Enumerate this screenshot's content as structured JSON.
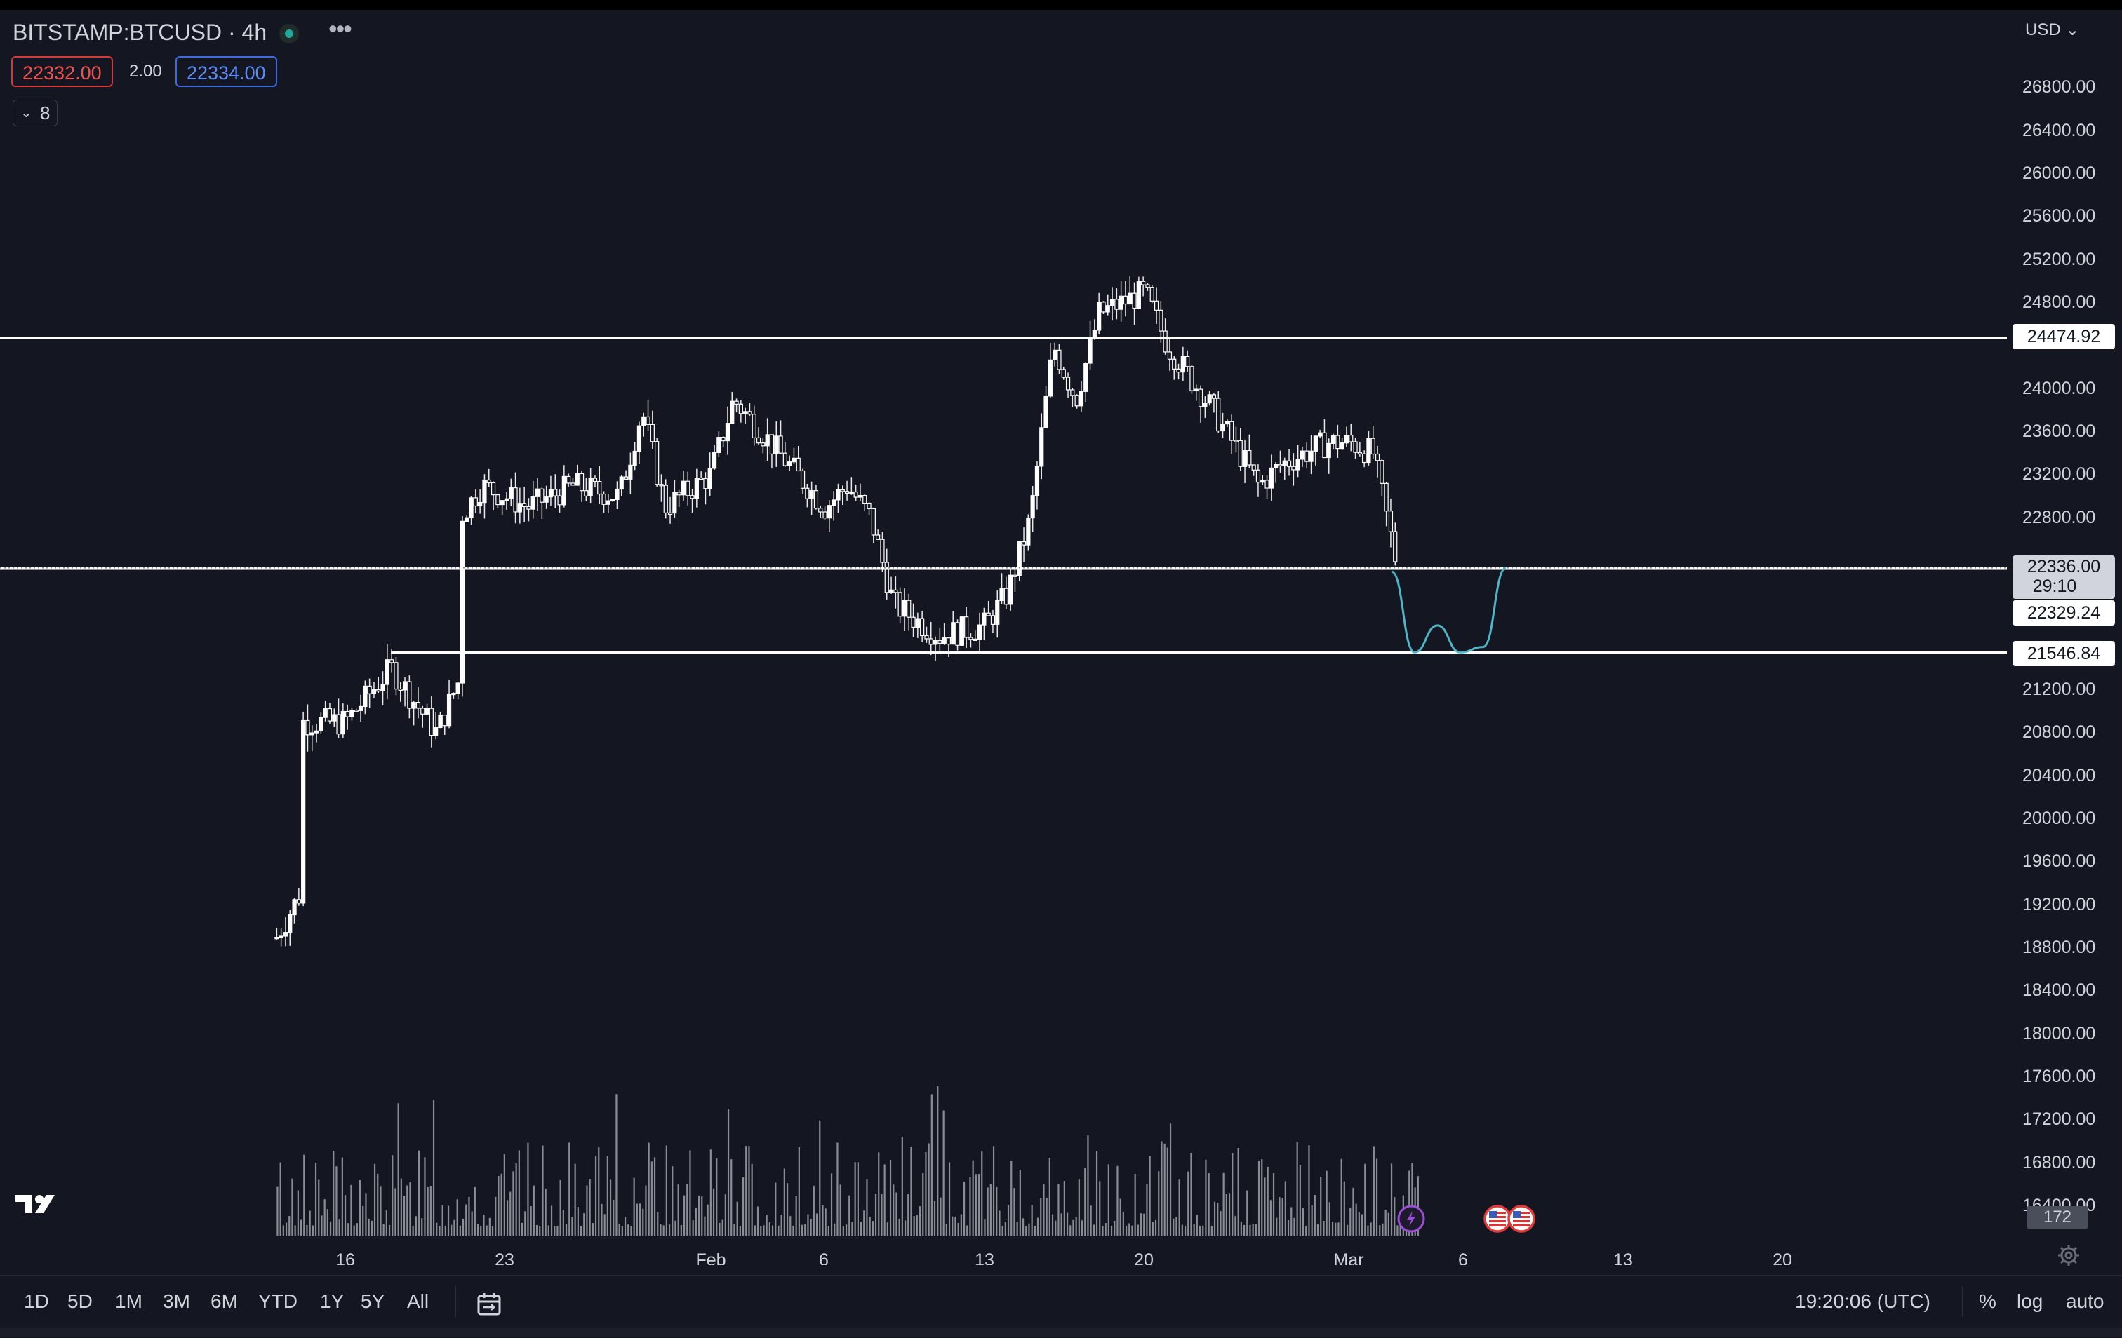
{
  "header": {
    "symbol": "BITSTAMP:BTCUSD · 4h",
    "bid": "22332.00",
    "spread": "2.00",
    "ask": "22334.00",
    "indicators_count": "8",
    "currency": "USD"
  },
  "price_axis": {
    "ticks": [
      "26800.00",
      "26400.00",
      "26000.00",
      "25600.00",
      "25200.00",
      "24800.00",
      "24000.00",
      "23600.00",
      "23200.00",
      "22800.00",
      "21200.00",
      "20800.00",
      "20400.00",
      "20000.00",
      "19600.00",
      "19200.00",
      "18800.00",
      "18400.00",
      "18000.00",
      "17600.00",
      "17200.00",
      "16800.00",
      "16400.00"
    ],
    "current_price": "22336.00",
    "countdown": "29:10",
    "volume_label": "172"
  },
  "drawings": {
    "resistance": "24474.92",
    "support_mid": "22329.24",
    "support_low": "21546.84"
  },
  "time_axis": {
    "labels": [
      "16",
      "23",
      "Feb",
      "6",
      "13",
      "20",
      "Mar",
      "6",
      "13",
      "20"
    ]
  },
  "colors": {
    "background": "#141722",
    "candle": "#ffffff",
    "projection": "#4fb6c8",
    "bid_border": "#d6393a",
    "ask_border": "#3c6be0"
  },
  "icons": {
    "chart_lightning": "lightning-icon",
    "us_flags": "us-flag-icon",
    "settings": "gear-icon",
    "logo": "tradingview-logo"
  },
  "chart_data": {
    "type": "candlestick",
    "title": "BITSTAMP:BTCUSD · 4h",
    "ylim": [
      16100,
      27200
    ],
    "x_labels": [
      "16",
      "23",
      "Feb",
      "6",
      "13",
      "20",
      "Mar",
      "6",
      "13",
      "20"
    ],
    "horizontal_lines": [
      24474.92,
      22329.24,
      21546.84
    ],
    "price_path": [
      [
        "Jan 13",
        18900
      ],
      [
        "Jan 14",
        19300
      ],
      [
        "Jan 14",
        20900
      ],
      [
        "Jan 16",
        20900
      ],
      [
        "Jan 18",
        21400
      ],
      [
        "Jan 20",
        20800
      ],
      [
        "Jan 21",
        21300
      ],
      [
        "Jan 21",
        22800
      ],
      [
        "Jan 22",
        23100
      ],
      [
        "Jan 24",
        22900
      ],
      [
        "Jan 26",
        23100
      ],
      [
        "Jan 28",
        23000
      ],
      [
        "Jan 29",
        23800
      ],
      [
        "Jan 30",
        22900
      ],
      [
        "Feb 1",
        23200
      ],
      [
        "Feb 2",
        23900
      ],
      [
        "Feb 4",
        23400
      ],
      [
        "Feb 6",
        22900
      ],
      [
        "Feb 7",
        23100
      ],
      [
        "Feb 8",
        22800
      ],
      [
        "Feb 9",
        22000
      ],
      [
        "Feb 11",
        21700
      ],
      [
        "Feb 13",
        21800
      ],
      [
        "Feb 14",
        22100
      ],
      [
        "Feb 15",
        22800
      ],
      [
        "Feb 16",
        24400
      ],
      [
        "Feb 17",
        23900
      ],
      [
        "Feb 18",
        24700
      ],
      [
        "Feb 20",
        24900
      ],
      [
        "Feb 21",
        24400
      ],
      [
        "Feb 22",
        24100
      ],
      [
        "Feb 23",
        23800
      ],
      [
        "Feb 25",
        23100
      ],
      [
        "Feb 26",
        23300
      ],
      [
        "Feb 28",
        23500
      ],
      [
        "Mar 1",
        23500
      ],
      [
        "Mar 2",
        23400
      ],
      [
        "Mar 3",
        22400
      ]
    ],
    "projection_path": [
      [
        "Mar 3",
        22300
      ],
      [
        "Mar 4",
        21550
      ],
      [
        "Mar 5",
        21800
      ],
      [
        "Mar 6",
        21550
      ],
      [
        "Mar 7",
        21600
      ],
      [
        "Mar 8",
        22336
      ]
    ]
  },
  "bottom_bar": {
    "ranges": [
      "1D",
      "5D",
      "1M",
      "3M",
      "6M",
      "YTD",
      "1Y",
      "5Y",
      "All"
    ],
    "clock": "19:20:06 (UTC)",
    "opt_percent": "%",
    "opt_log": "log",
    "opt_auto": "auto"
  }
}
